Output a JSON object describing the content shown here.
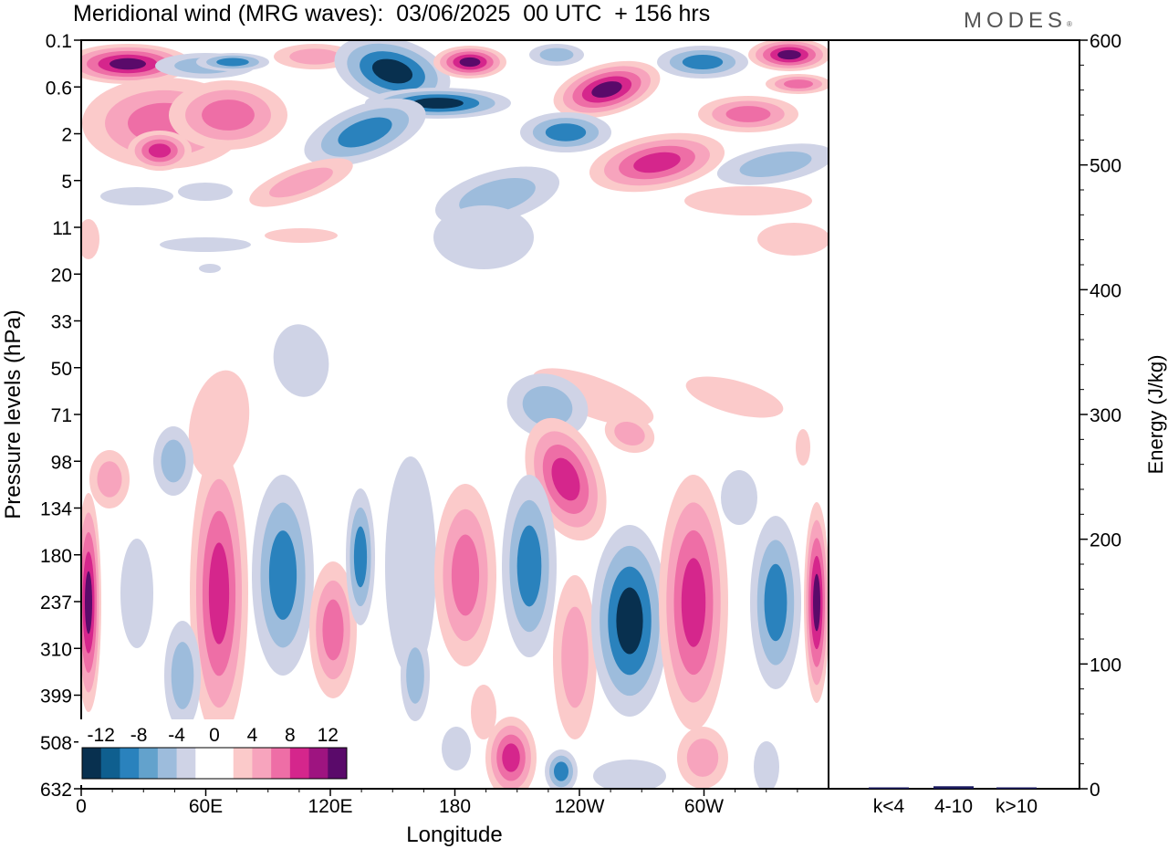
{
  "header": {
    "title": "Meridional wind (MRG waves):  03/06/2025  00 UTC  + 156 hrs",
    "logo": "MODES"
  },
  "chart_data": [
    {
      "type": "heatmap",
      "title": "Meridional wind (MRG waves):  03/06/2025  00 UTC  + 156 hrs",
      "xlabel": "Longitude",
      "ylabel": "Pressure levels (hPa)",
      "x_ticks": [
        "0",
        "60E",
        "120E",
        "180",
        "120W",
        "60W"
      ],
      "y_ticks": [
        "0.1",
        "0.6",
        "2",
        "5",
        "11",
        "20",
        "33",
        "50",
        "71",
        "98",
        "134",
        "180",
        "237",
        "310",
        "399",
        "508",
        "632"
      ],
      "colorbar": {
        "labels": [
          "-12",
          "-8",
          "-4",
          "0",
          "4",
          "8",
          "12"
        ],
        "colors": [
          "#08304f",
          "#0f5f8f",
          "#2a82bd",
          "#63a2cc",
          "#9dbcdc",
          "#cfd3e6",
          "#ffffff",
          "#ffffff",
          "#fbcaca",
          "#f7a4bd",
          "#ee6ea6",
          "#d5268c",
          "#9e1480",
          "#5a0a6a"
        ]
      },
      "palette": {
        "neg_strong": "#08304f",
        "neg_mid": "#2a82bd",
        "neg_weak": "#9dbcdc",
        "neg_faint": "#cfd3e6",
        "pos_faint": "#fbcaca",
        "pos_weak": "#f7a4bd",
        "pos_mid": "#ee6ea6",
        "pos_strong": "#d5268c",
        "pos_max": "#5a0a6a"
      }
    },
    {
      "type": "bar",
      "ylabel": "Energy (J/kg)",
      "categories": [
        "k<4",
        "4-10",
        "k>10"
      ],
      "values": [
        0,
        2,
        0
      ],
      "ylim": [
        0,
        600
      ],
      "y_ticks": [
        "0",
        "100",
        "200",
        "300",
        "400",
        "500",
        "600"
      ],
      "bar_color": "#1a1a5e"
    }
  ]
}
